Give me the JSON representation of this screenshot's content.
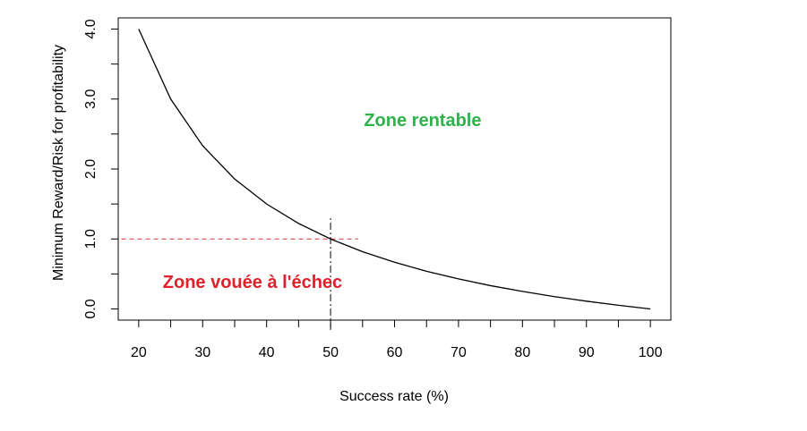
{
  "chart_data": {
    "type": "line",
    "x_label": "Success rate (%)",
    "y_label": "Minimum Reward/Risk for profitability",
    "x": [
      20,
      25,
      30,
      35,
      40,
      45,
      50,
      55,
      60,
      65,
      70,
      75,
      80,
      85,
      90,
      95,
      100
    ],
    "series": [
      {
        "color": "#000000",
        "values": [
          4,
          3,
          2.333,
          1.857,
          1.5,
          1.222,
          1,
          0.818,
          0.667,
          0.538,
          0.429,
          0.333,
          0.25,
          0.176,
          0.111,
          0.053,
          0
        ]
      }
    ],
    "xlim": [
      16.8,
      103.2
    ],
    "ylim": [
      -0.16,
      4.16
    ],
    "xticks": [
      20,
      30,
      40,
      50,
      60,
      70,
      80,
      90,
      100
    ],
    "xticks_minor": [
      25,
      35,
      45,
      55,
      65,
      75,
      85,
      95
    ],
    "yticks": [
      {
        "value": 0,
        "label": "0.0"
      },
      {
        "value": 1,
        "label": "1.0"
      },
      {
        "value": 2,
        "label": "2.0"
      },
      {
        "value": 3,
        "label": "3.0"
      },
      {
        "value": 4,
        "label": "4.0"
      }
    ],
    "yticks_minor": [
      0.5,
      1.5,
      2.5,
      3.5
    ],
    "reference_lines": [
      {
        "axis": "y",
        "value": 1,
        "from": 17.3,
        "to": 54.3,
        "color": "#e0302f",
        "dash": "dashed"
      },
      {
        "axis": "x",
        "value": 50,
        "from": -0.3,
        "to": 1.3,
        "color": "#000000",
        "dash": "dashdot"
      }
    ],
    "annotations": [
      {
        "text": "Zone rentable",
        "x": 64.4,
        "y": 2.68,
        "color": "#2db34a"
      },
      {
        "text": "Zone vouée à l'échec",
        "x": 37.8,
        "y": 0.37,
        "color": "#e0202a"
      }
    ]
  }
}
